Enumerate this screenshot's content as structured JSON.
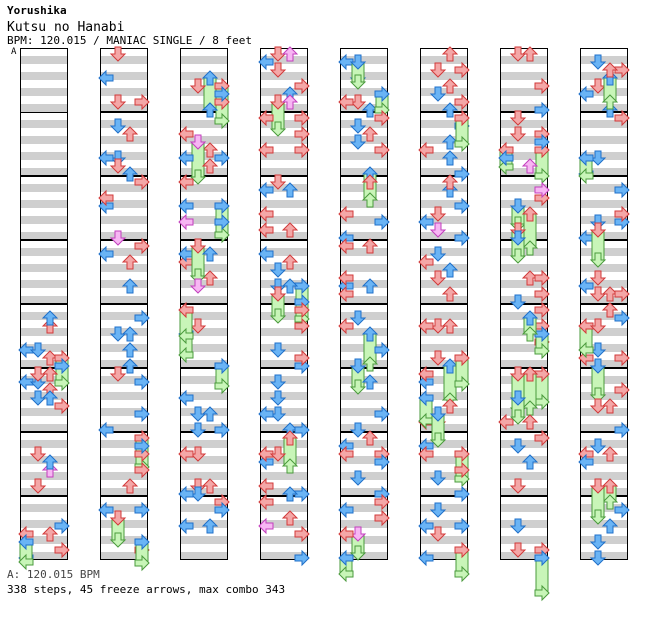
{
  "header": {
    "artist": "Yorushika",
    "title": "Kutsu no Hanabi",
    "info": "BPM: 120.015 / MANIAC SINGLE / 8 feet",
    "segment_label": "A"
  },
  "footer": {
    "bpm_line": "A: 120.015 BPM",
    "stats_line": "338 steps, 45 freeze arrows, max combo 343"
  },
  "chart_data": {
    "type": "step-chart",
    "mode": "SINGLE",
    "difficulty": "MANIAC",
    "rating": "8 feet",
    "bpm": 120.015,
    "steps": 338,
    "freeze_arrows": 45,
    "max_combo": 343,
    "lanes": [
      "left",
      "down",
      "up",
      "right"
    ],
    "columns": 8,
    "measures_per_column": 8,
    "colors": {
      "quarter_note": "#f4a7a7",
      "quarter_stroke": "#d23a3a",
      "eighth_note": "#6ab4f5",
      "eighth_stroke": "#1f6fc9",
      "sixteenth_note": "#f7b6f3",
      "sixteenth_stroke": "#c23fbd",
      "freeze": "#c8f5b8",
      "freeze_stroke": "#4a9a3c",
      "stripe": "#cfcfcf",
      "background": "#ffffff"
    }
  }
}
